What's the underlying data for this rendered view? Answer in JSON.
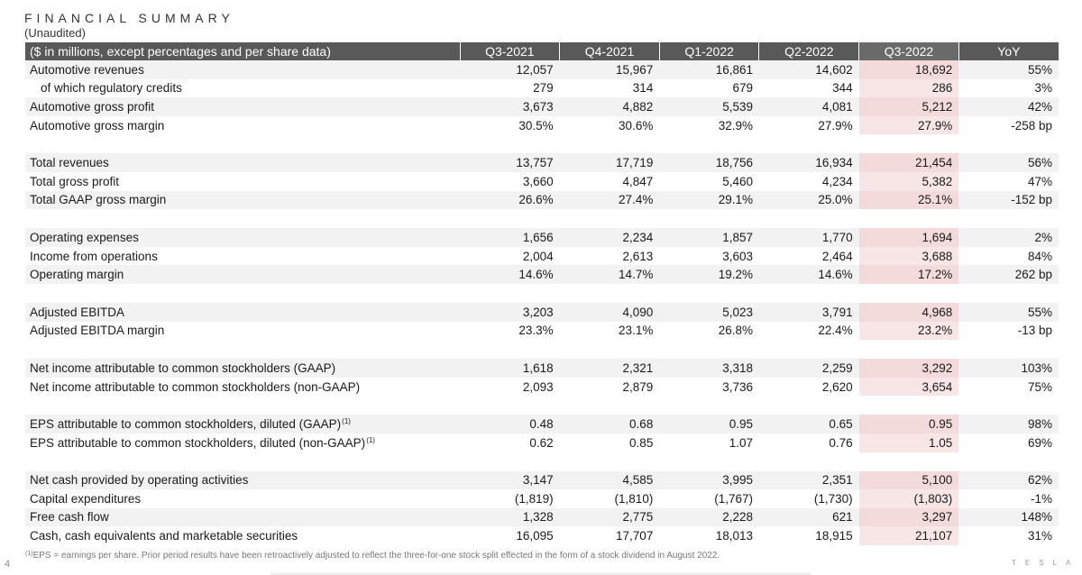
{
  "header": {
    "title": "FINANCIAL SUMMARY",
    "subtitle": "(Unaudited)"
  },
  "table": {
    "header_label": "($ in millions, except percentages and per share data)",
    "columns": [
      "Q3-2021",
      "Q4-2021",
      "Q1-2022",
      "Q2-2022",
      "Q3-2022",
      "YoY"
    ],
    "highlight_color": "#f4dbdb",
    "groups": [
      {
        "rows": [
          {
            "label": "Automotive revenues",
            "values": [
              "12,057",
              "15,967",
              "16,861",
              "14,602",
              "18,692",
              "55%"
            ]
          },
          {
            "label": "of which regulatory credits",
            "indent": true,
            "values": [
              "279",
              "314",
              "679",
              "344",
              "286",
              "3%"
            ]
          },
          {
            "label": "Automotive gross profit",
            "values": [
              "3,673",
              "4,882",
              "5,539",
              "4,081",
              "5,212",
              "42%"
            ]
          },
          {
            "label": "Automotive gross margin",
            "values": [
              "30.5%",
              "30.6%",
              "32.9%",
              "27.9%",
              "27.9%",
              "-258 bp"
            ]
          }
        ]
      },
      {
        "rows": [
          {
            "label": "Total revenues",
            "values": [
              "13,757",
              "17,719",
              "18,756",
              "16,934",
              "21,454",
              "56%"
            ]
          },
          {
            "label": "Total gross profit",
            "values": [
              "3,660",
              "4,847",
              "5,460",
              "4,234",
              "5,382",
              "47%"
            ]
          },
          {
            "label": "Total GAAP gross margin",
            "values": [
              "26.6%",
              "27.4%",
              "29.1%",
              "25.0%",
              "25.1%",
              "-152 bp"
            ]
          }
        ]
      },
      {
        "rows": [
          {
            "label": "Operating expenses",
            "values": [
              "1,656",
              "2,234",
              "1,857",
              "1,770",
              "1,694",
              "2%"
            ]
          },
          {
            "label": "Income from operations",
            "values": [
              "2,004",
              "2,613",
              "3,603",
              "2,464",
              "3,688",
              "84%"
            ]
          },
          {
            "label": "Operating margin",
            "values": [
              "14.6%",
              "14.7%",
              "19.2%",
              "14.6%",
              "17.2%",
              "262 bp"
            ]
          }
        ]
      },
      {
        "rows": [
          {
            "label": "Adjusted EBITDA",
            "values": [
              "3,203",
              "4,090",
              "5,023",
              "3,791",
              "4,968",
              "55%"
            ]
          },
          {
            "label": "Adjusted EBITDA margin",
            "values": [
              "23.3%",
              "23.1%",
              "26.8%",
              "22.4%",
              "23.2%",
              "-13 bp"
            ]
          }
        ]
      },
      {
        "rows": [
          {
            "label": "Net income attributable to common stockholders (GAAP)",
            "values": [
              "1,618",
              "2,321",
              "3,318",
              "2,259",
              "3,292",
              "103%"
            ]
          },
          {
            "label": "Net income attributable to common stockholders (non-GAAP)",
            "values": [
              "2,093",
              "2,879",
              "3,736",
              "2,620",
              "3,654",
              "75%"
            ]
          }
        ]
      },
      {
        "rows": [
          {
            "label": "EPS attributable to common stockholders, diluted (GAAP)",
            "sup": "(1)",
            "values": [
              "0.48",
              "0.68",
              "0.95",
              "0.65",
              "0.95",
              "98%"
            ]
          },
          {
            "label": "EPS attributable to common stockholders, diluted (non-GAAP)",
            "sup": "(1)",
            "values": [
              "0.62",
              "0.85",
              "1.07",
              "0.76",
              "1.05",
              "69%"
            ]
          }
        ]
      },
      {
        "rows": [
          {
            "label": "Net cash provided by operating activities",
            "values": [
              "3,147",
              "4,585",
              "3,995",
              "2,351",
              "5,100",
              "62%"
            ]
          },
          {
            "label": "Capital expenditures",
            "values": [
              "(1,819)",
              "(1,810)",
              "(1,767)",
              "(1,730)",
              "(1,803)",
              "-1%"
            ]
          },
          {
            "label": "Free cash flow",
            "values": [
              "1,328",
              "2,775",
              "2,228",
              "621",
              "3,297",
              "148%"
            ]
          },
          {
            "label": "Cash, cash equivalents and marketable securities",
            "values": [
              "16,095",
              "17,707",
              "18,013",
              "18,915",
              "21,107",
              "31%"
            ]
          }
        ]
      }
    ]
  },
  "footnote": {
    "marker": "(1)",
    "text": "EPS = earnings per share. Prior period results have been retroactively adjusted to reflect the three-for-one stock split effected in the form of a stock dividend in August 2022."
  },
  "page_number": "4",
  "brand": "TESLA"
}
